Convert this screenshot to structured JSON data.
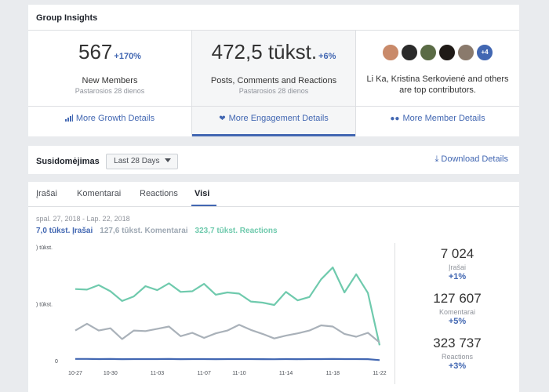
{
  "header": {
    "title": "Group Insights"
  },
  "stats": [
    {
      "value": "567",
      "change": "+170%",
      "label": "New Members",
      "period": "Pastarosios 28 dienos",
      "link": "More Growth Details"
    },
    {
      "value": "472,5 tūkst.",
      "change": "+6%",
      "label": "Posts, Comments and Reactions",
      "period": "Pastarosios 28 dienos",
      "link": "More Engagement Details"
    },
    {
      "avatars_more": "+4",
      "contributors": "Li Ka, Kristina Serkovienė and others are top contributors.",
      "link": "More Member Details"
    }
  ],
  "avatar_colors": [
    "#c98a6a",
    "#2b2b2b",
    "#5a6b45",
    "#1f1a17",
    "#8a7a6c"
  ],
  "engagement": {
    "label": "Susidomėjimas",
    "range": "Last 28 Days",
    "download": "Download Details"
  },
  "tabs": [
    "Įrašai",
    "Komentarai",
    "Reactions",
    "Visi"
  ],
  "active_tab": "Visi",
  "date_range": "spal. 27, 2018 - Lap. 22, 2018",
  "legend": [
    {
      "text": "7,0 tūkst. Įrašai",
      "color": "#4267b2"
    },
    {
      "text": "127,6 tūkst. Komentarai",
      "color": "#9ea8b3"
    },
    {
      "text": "323,7 tūkst. Reactions",
      "color": "#6fcaad"
    }
  ],
  "side_stats": [
    {
      "value": "7 024",
      "label": "Įrašai",
      "change": "+1%"
    },
    {
      "value": "127 607",
      "label": "Komentarai",
      "change": "+5%"
    },
    {
      "value": "323 737",
      "label": "Reactions",
      "change": "+3%"
    }
  ],
  "chart_data": {
    "type": "line",
    "y_tick_labels": [
      ") tūkst.",
      ") tūkst.",
      "0"
    ],
    "y_ticks": [
      20000,
      10000,
      0
    ],
    "ylim": [
      0,
      20000
    ],
    "x_tick_labels": [
      "10-27",
      "10-30",
      "11-03",
      "11-07",
      "11-10",
      "11-14",
      "11-18",
      "11-22"
    ],
    "x_tick_index": [
      0,
      3,
      7,
      11,
      14,
      18,
      22,
      26
    ],
    "series": [
      {
        "name": "Reactions",
        "color": "#6fcaad",
        "values": [
          12600,
          12500,
          13300,
          12200,
          10500,
          11300,
          13100,
          12400,
          13600,
          12100,
          12200,
          13500,
          11600,
          12000,
          11800,
          10400,
          10200,
          9800,
          12100,
          10600,
          11200,
          14300,
          16400,
          12000,
          15200,
          11900,
          2700
        ]
      },
      {
        "name": "Komentarai",
        "color": "#a9b1b9",
        "values": [
          5300,
          6500,
          5300,
          5700,
          3800,
          5300,
          5200,
          5600,
          6000,
          4300,
          4900,
          4000,
          4800,
          5300,
          6300,
          5400,
          4700,
          3900,
          4400,
          4800,
          5300,
          6200,
          6000,
          4700,
          4200,
          4900,
          3200
        ]
      },
      {
        "name": "Įrašai",
        "color": "#4267b2",
        "values": [
          300,
          300,
          280,
          290,
          260,
          270,
          280,
          270,
          290,
          260,
          270,
          280,
          260,
          270,
          280,
          270,
          260,
          250,
          270,
          260,
          270,
          280,
          290,
          270,
          280,
          260,
          100
        ]
      }
    ]
  }
}
